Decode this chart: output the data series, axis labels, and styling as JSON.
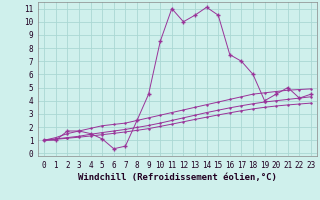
{
  "xlabel": "Windchill (Refroidissement éolien,°C)",
  "background_color": "#cff0ec",
  "grid_color": "#aad8d3",
  "line_color": "#993399",
  "xlim": [
    -0.5,
    23.5
  ],
  "ylim": [
    -0.2,
    11.5
  ],
  "xticks": [
    0,
    1,
    2,
    3,
    4,
    5,
    6,
    7,
    8,
    9,
    10,
    11,
    12,
    13,
    14,
    15,
    16,
    17,
    18,
    19,
    20,
    21,
    22,
    23
  ],
  "yticks": [
    0,
    1,
    2,
    3,
    4,
    5,
    6,
    7,
    8,
    9,
    10,
    11
  ],
  "series1_x": [
    0,
    1,
    2,
    3,
    4,
    5,
    6,
    7,
    8,
    9,
    10,
    11,
    12,
    13,
    14,
    15,
    16,
    17,
    18,
    19,
    20,
    21,
    22,
    23
  ],
  "series1_y": [
    1.0,
    1.0,
    1.7,
    1.7,
    1.5,
    1.1,
    0.35,
    0.55,
    2.5,
    4.5,
    8.5,
    11.0,
    10.0,
    10.5,
    11.1,
    10.5,
    7.5,
    7.0,
    6.0,
    4.0,
    4.5,
    5.0,
    4.2,
    4.5
  ],
  "series2_x": [
    0,
    1,
    2,
    3,
    4,
    5,
    6,
    7,
    8,
    9,
    10,
    11,
    12,
    13,
    14,
    15,
    16,
    17,
    18,
    19,
    20,
    21,
    22,
    23
  ],
  "series2_y": [
    1.0,
    1.2,
    1.5,
    1.7,
    1.9,
    2.1,
    2.2,
    2.3,
    2.5,
    2.7,
    2.9,
    3.1,
    3.3,
    3.5,
    3.7,
    3.9,
    4.1,
    4.3,
    4.5,
    4.6,
    4.7,
    4.8,
    4.85,
    4.9
  ],
  "series3_x": [
    0,
    1,
    2,
    3,
    4,
    5,
    6,
    7,
    8,
    9,
    10,
    11,
    12,
    13,
    14,
    15,
    16,
    17,
    18,
    19,
    20,
    21,
    22,
    23
  ],
  "series3_y": [
    1.0,
    1.1,
    1.2,
    1.3,
    1.45,
    1.58,
    1.7,
    1.82,
    1.97,
    2.12,
    2.3,
    2.5,
    2.7,
    2.9,
    3.1,
    3.28,
    3.46,
    3.62,
    3.77,
    3.9,
    4.0,
    4.1,
    4.2,
    4.3
  ],
  "series4_x": [
    0,
    1,
    2,
    3,
    4,
    5,
    6,
    7,
    8,
    9,
    10,
    11,
    12,
    13,
    14,
    15,
    16,
    17,
    18,
    19,
    20,
    21,
    22,
    23
  ],
  "series4_y": [
    1.0,
    1.07,
    1.15,
    1.23,
    1.32,
    1.42,
    1.52,
    1.63,
    1.75,
    1.88,
    2.05,
    2.22,
    2.4,
    2.58,
    2.75,
    2.92,
    3.08,
    3.24,
    3.38,
    3.5,
    3.6,
    3.68,
    3.75,
    3.82
  ],
  "font_family": "monospace",
  "tick_fontsize": 5.5,
  "xlabel_fontsize": 6.5
}
